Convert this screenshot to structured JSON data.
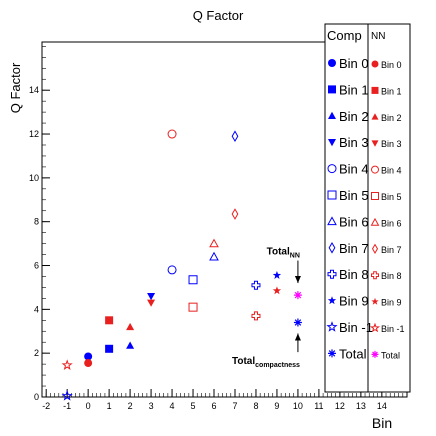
{
  "chart_data": {
    "type": "scatter",
    "title": "Q Factor",
    "xlabel": "Bin",
    "ylabel": "Q Factor",
    "xlim": [
      -2.2,
      15.2
    ],
    "ylim": [
      0,
      16.2
    ],
    "x_ticks": [
      -2,
      -1,
      0,
      1,
      2,
      3,
      4,
      5,
      6,
      7,
      8,
      9,
      10,
      11,
      12,
      13,
      14
    ],
    "y_ticks": [
      0,
      2,
      4,
      6,
      8,
      10,
      12,
      14
    ],
    "grid": false,
    "legend_placement": "right",
    "legend": {
      "header_comp": "Comp",
      "header_nn": "NN",
      "comp_entries": [
        "Bin 0",
        "Bin 1",
        "Bin 2",
        "Bin 3",
        "Bin 4",
        "Bin 5",
        "Bin 6",
        "Bin 7",
        "Bin 8",
        "Bin 9",
        "Bin -1",
        "Total"
      ],
      "nn_entries": [
        "Bin 0",
        "Bin 1",
        "Bin 2",
        "Bin 3",
        "Bin 4",
        "Bin 5",
        "Bin 6",
        "Bin 7",
        "Bin 8",
        "Bin 9",
        "Bin -1",
        "Total"
      ]
    },
    "series": [
      {
        "group": "Comp",
        "color": "#0000ff",
        "points": [
          {
            "x": 0,
            "y": 1.85,
            "marker": "circle-filled"
          },
          {
            "x": 1,
            "y": 2.2,
            "marker": "square-filled"
          },
          {
            "x": 2,
            "y": 2.35,
            "marker": "triangle-up-filled"
          },
          {
            "x": 3,
            "y": 4.6,
            "marker": "triangle-down-filled"
          },
          {
            "x": 4,
            "y": 5.8,
            "marker": "circle-open"
          },
          {
            "x": 5,
            "y": 5.35,
            "marker": "square-open"
          },
          {
            "x": 6,
            "y": 6.4,
            "marker": "triangle-up-open"
          },
          {
            "x": 7,
            "y": 11.9,
            "marker": "diamond-open"
          },
          {
            "x": 8,
            "y": 5.1,
            "marker": "cross-open"
          },
          {
            "x": 9,
            "y": 5.55,
            "marker": "star-filled"
          },
          {
            "x": -1,
            "y": 0.05,
            "marker": "star-open"
          },
          {
            "x": 10,
            "y": 3.4,
            "marker": "asterisk"
          }
        ]
      },
      {
        "group": "NN",
        "color": "#e8201f",
        "points": [
          {
            "x": 0,
            "y": 1.55,
            "marker": "circle-filled"
          },
          {
            "x": 1,
            "y": 3.5,
            "marker": "square-filled"
          },
          {
            "x": 2,
            "y": 3.2,
            "marker": "triangle-up-filled"
          },
          {
            "x": 3,
            "y": 4.3,
            "marker": "triangle-down-filled"
          },
          {
            "x": 4,
            "y": 12.0,
            "marker": "circle-open"
          },
          {
            "x": 5,
            "y": 4.1,
            "marker": "square-open"
          },
          {
            "x": 6,
            "y": 7.0,
            "marker": "triangle-up-open"
          },
          {
            "x": 7,
            "y": 8.35,
            "marker": "diamond-open"
          },
          {
            "x": 8,
            "y": 3.7,
            "marker": "cross-open"
          },
          {
            "x": 9,
            "y": 4.85,
            "marker": "star-filled"
          },
          {
            "x": -1,
            "y": 1.45,
            "marker": "star-open"
          },
          {
            "x": 10,
            "y": 4.65,
            "marker": "asterisk"
          }
        ]
      }
    ],
    "annotations": [
      {
        "main": "Total",
        "sub": "NN",
        "x": 10,
        "y": 6.5,
        "arrow_to_y": 5.2
      },
      {
        "main": "Total",
        "sub": "compactness",
        "x": 10,
        "y": 1.5,
        "arrow_to_y": 2.9
      }
    ]
  },
  "colors": {
    "comp": "#0000ff",
    "nn": "#e8201f",
    "total_nn": "#ff00ff"
  }
}
